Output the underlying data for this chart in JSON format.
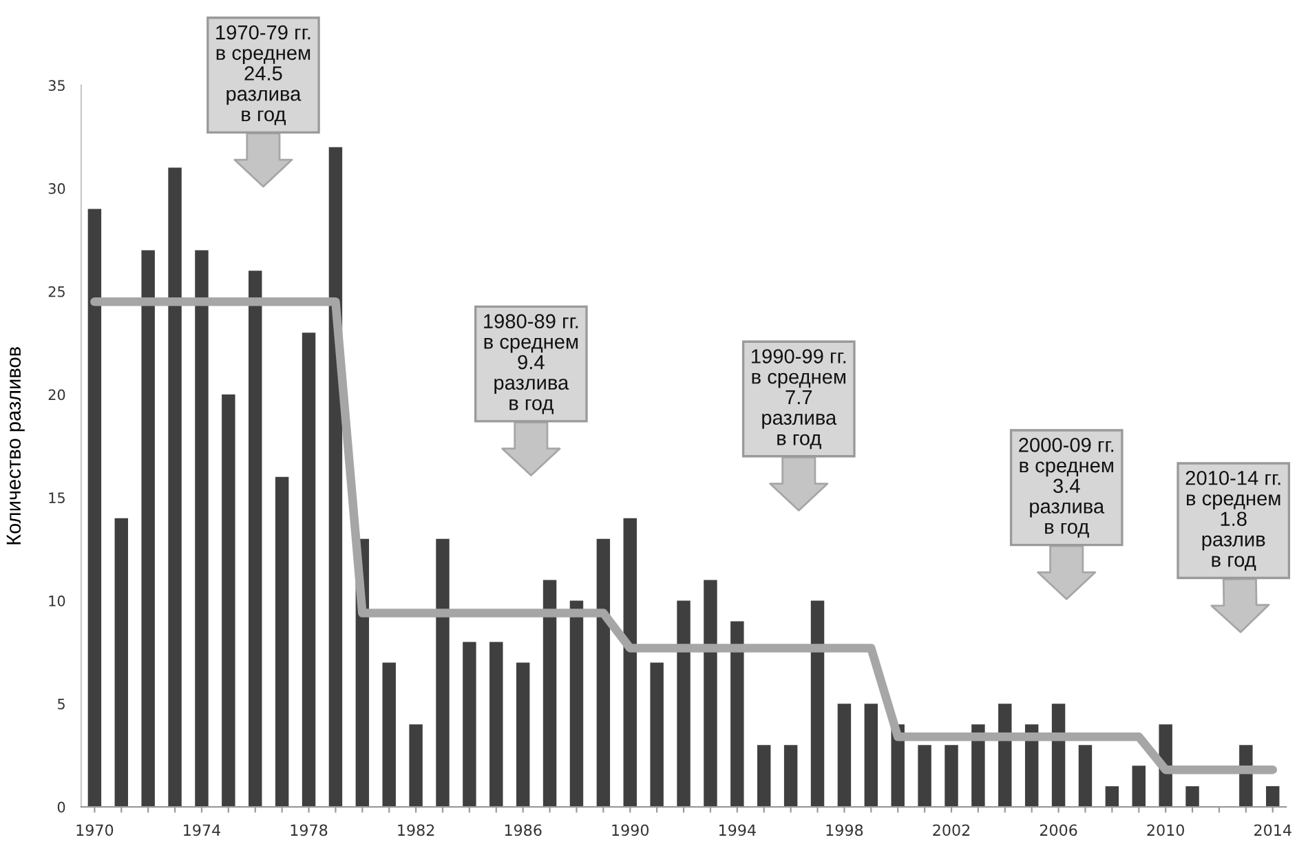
{
  "chart_data": {
    "type": "bar",
    "ylabel": "Количество разливов",
    "x": [
      1970,
      1971,
      1972,
      1973,
      1974,
      1975,
      1976,
      1977,
      1978,
      1979,
      1980,
      1981,
      1982,
      1983,
      1984,
      1985,
      1986,
      1987,
      1988,
      1989,
      1990,
      1991,
      1992,
      1993,
      1994,
      1995,
      1996,
      1997,
      1998,
      1999,
      2000,
      2001,
      2002,
      2003,
      2004,
      2005,
      2006,
      2007,
      2008,
      2009,
      2010,
      2011,
      2012,
      2013,
      2014
    ],
    "series": [
      {
        "color": "#3f3f3f",
        "values": [
          29,
          14,
          27,
          31,
          27,
          20,
          26,
          16,
          23,
          32,
          13,
          7,
          4,
          13,
          8,
          8,
          7,
          11,
          10,
          13,
          14,
          7,
          10,
          11,
          9,
          3,
          3,
          10,
          5,
          5,
          4,
          3,
          3,
          4,
          5,
          4,
          5,
          3,
          1,
          2,
          4,
          1,
          0,
          3,
          1
        ]
      },
      {
        "type": "line",
        "color": "#a6a6a6",
        "values": [
          24.5,
          24.5,
          24.5,
          24.5,
          24.5,
          24.5,
          24.5,
          24.5,
          24.5,
          24.5,
          9.4,
          9.4,
          9.4,
          9.4,
          9.4,
          9.4,
          9.4,
          9.4,
          9.4,
          9.4,
          7.7,
          7.7,
          7.7,
          7.7,
          7.7,
          7.7,
          7.7,
          7.7,
          7.7,
          7.7,
          3.4,
          3.4,
          3.4,
          3.4,
          3.4,
          3.4,
          3.4,
          3.4,
          3.4,
          3.4,
          1.8,
          1.8,
          1.8,
          1.8,
          1.8
        ]
      }
    ],
    "xlim": [
      1969.5,
      2014.5
    ],
    "xticks": [
      1970,
      {
        "value": 1971,
        "label": null
      },
      {
        "value": 1972,
        "label": null
      },
      {
        "value": 1973,
        "label": null
      },
      1974,
      {
        "value": 1975,
        "label": null
      },
      {
        "value": 1976,
        "label": null
      },
      {
        "value": 1977,
        "label": null
      },
      1978,
      {
        "value": 1979,
        "label": null
      },
      {
        "value": 1980,
        "label": null
      },
      {
        "value": 1981,
        "label": null
      },
      1982,
      {
        "value": 1983,
        "label": null
      },
      {
        "value": 1984,
        "label": null
      },
      {
        "value": 1985,
        "label": null
      },
      1986,
      {
        "value": 1987,
        "label": null
      },
      {
        "value": 1988,
        "label": null
      },
      {
        "value": 1989,
        "label": null
      },
      1990,
      {
        "value": 1991,
        "label": null
      },
      {
        "value": 1992,
        "label": null
      },
      {
        "value": 1993,
        "label": null
      },
      1994,
      {
        "value": 1995,
        "label": null
      },
      {
        "value": 1996,
        "label": null
      },
      {
        "value": 1997,
        "label": null
      },
      1998,
      {
        "value": 1999,
        "label": null
      },
      {
        "value": 2000,
        "label": null
      },
      {
        "value": 2001,
        "label": null
      },
      2002,
      {
        "value": 2003,
        "label": null
      },
      {
        "value": 2004,
        "label": null
      },
      {
        "value": 2005,
        "label": null
      },
      2006,
      {
        "value": 2007,
        "label": null
      },
      {
        "value": 2008,
        "label": null
      },
      {
        "value": 2009,
        "label": null
      },
      2010,
      {
        "value": 2011,
        "label": null
      },
      {
        "value": 2012,
        "label": null
      },
      {
        "value": 2013,
        "label": null
      },
      2014
    ],
    "ylim": [
      0,
      35
    ],
    "yticks": [
      0,
      5,
      10,
      15,
      20,
      25,
      30,
      35
    ],
    "annotations": [
      "1970-79 гг.\nв среднем\n24.5\nразлива\nв год",
      "1980-89 гг.\nв среднем\n9.4\nразлива\nв год",
      "1990-99 гг.\nв среднем\n7.7\nразлива\nв год",
      "2000-09 гг.\nв среднем\n3.4\nразлива\nв год",
      "2010-14 гг.\nв среднем\n1.8\nразлив\nв год"
    ]
  }
}
